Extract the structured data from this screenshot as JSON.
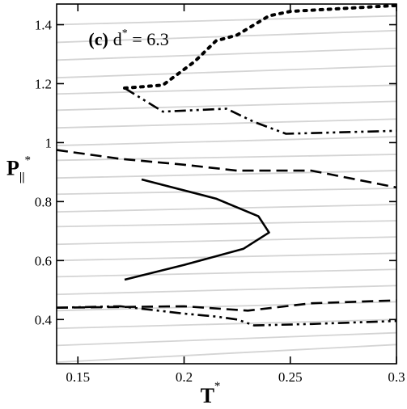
{
  "chart_data": {
    "type": "line",
    "title": "",
    "annotation": {
      "panel": "(c)",
      "symbol": "d",
      "superscript": "*",
      "text": " = 6.3"
    },
    "xlabel": {
      "main": "T",
      "superscript": "*"
    },
    "ylabel": {
      "main": "P",
      "subscript": "||",
      "superscript": "*"
    },
    "xlim": [
      0.14,
      0.3
    ],
    "ylim": [
      0.25,
      1.47
    ],
    "xticks": [
      0.15,
      0.2,
      0.25,
      0.3
    ],
    "xtick_labels": [
      "0.15",
      "0.2",
      "0.25",
      "0.3"
    ],
    "yticks": [
      0.4,
      0.6,
      0.8,
      1.0,
      1.2,
      1.4
    ],
    "ytick_labels": [
      "0.4",
      "0.6",
      "0.8",
      "1",
      "1.2",
      "1.4"
    ],
    "grid": false,
    "legend": "none",
    "background_lines": {
      "color": "#d4d4d4",
      "x_range": [
        0.14,
        0.3
      ],
      "lines": [
        [
          0.255,
          0.315
        ],
        [
          0.312,
          0.355
        ],
        [
          0.37,
          0.4
        ],
        [
          0.43,
          0.46
        ],
        [
          0.485,
          0.515
        ],
        [
          0.545,
          0.57
        ],
        [
          0.6,
          0.625
        ],
        [
          0.655,
          0.68
        ],
        [
          0.715,
          0.735
        ],
        [
          0.765,
          0.79
        ],
        [
          0.825,
          0.845
        ],
        [
          0.88,
          0.905
        ],
        [
          0.94,
          0.96
        ],
        [
          0.99,
          1.02
        ],
        [
          1.05,
          1.08
        ],
        [
          1.11,
          1.14
        ],
        [
          1.165,
          1.195
        ],
        [
          1.22,
          1.26
        ],
        [
          1.28,
          1.32
        ],
        [
          1.34,
          1.38
        ],
        [
          1.4,
          1.43
        ]
      ]
    },
    "series": [
      {
        "style": "solid",
        "color": "#000000",
        "x": [
          0.18,
          0.215,
          0.235,
          0.24,
          0.228,
          0.2,
          0.172
        ],
        "y": [
          0.875,
          0.81,
          0.75,
          0.695,
          0.64,
          0.585,
          0.535
        ]
      },
      {
        "style": "dashed",
        "color": "#000000",
        "x": [
          0.14,
          0.17,
          0.2,
          0.225,
          0.26,
          0.3
        ],
        "y": [
          0.975,
          0.945,
          0.925,
          0.905,
          0.905,
          0.848
        ]
      },
      {
        "style": "dotted",
        "color": "#000000",
        "x": [
          0.172,
          0.19,
          0.205,
          0.215,
          0.225,
          0.24,
          0.25,
          0.3
        ],
        "y": [
          1.185,
          1.195,
          1.275,
          1.345,
          1.365,
          1.43,
          1.445,
          1.465
        ]
      },
      {
        "style": "dash-dot-dot",
        "color": "#000000",
        "x": [
          0.172,
          0.19,
          0.22,
          0.233,
          0.248,
          0.3
        ],
        "y": [
          1.185,
          1.105,
          1.115,
          1.07,
          1.03,
          1.04
        ]
      },
      {
        "style": "dashed",
        "color": "#000000",
        "x": [
          0.14,
          0.2,
          0.23,
          0.26,
          0.3
        ],
        "y": [
          0.44,
          0.445,
          0.43,
          0.455,
          0.465
        ]
      },
      {
        "style": "dash-dot-dot",
        "color": "#000000",
        "x": [
          0.14,
          0.17,
          0.2,
          0.215,
          0.225,
          0.233,
          0.26,
          0.3
        ],
        "y": [
          0.44,
          0.445,
          0.42,
          0.41,
          0.4,
          0.38,
          0.385,
          0.395
        ]
      }
    ]
  }
}
